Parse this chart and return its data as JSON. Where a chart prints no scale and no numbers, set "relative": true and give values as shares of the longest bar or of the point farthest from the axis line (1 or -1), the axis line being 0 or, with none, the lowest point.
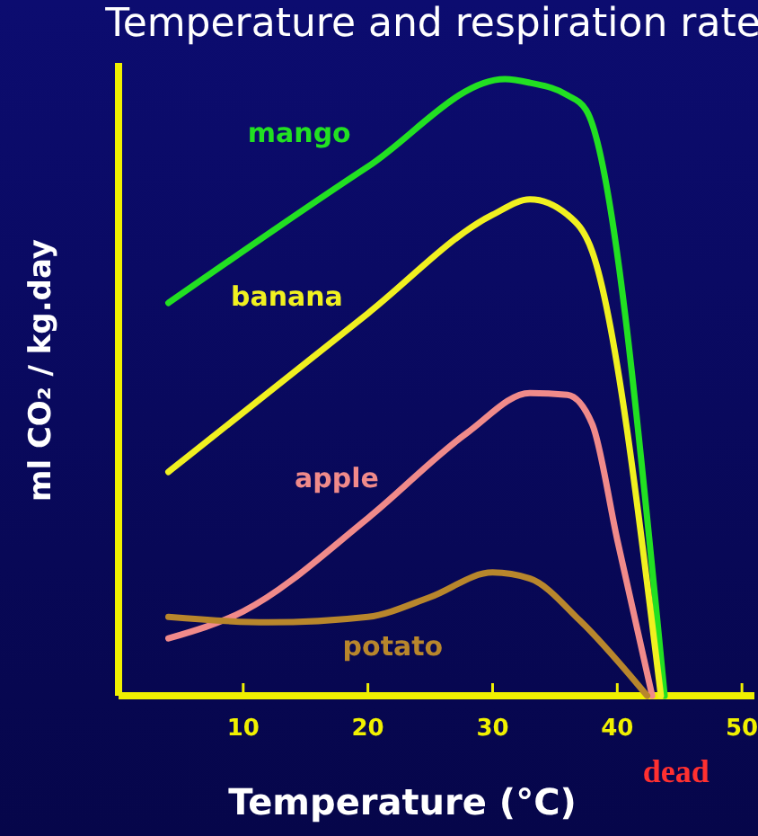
{
  "chart_data": {
    "type": "line",
    "title": "Temperature and respiration rate",
    "xlabel": "Temperature (°C)",
    "ylabel": "ml CO₂ / kg.day",
    "relative": true,
    "xlim": [
      0,
      51
    ],
    "xticks": [
      10,
      20,
      30,
      40,
      50
    ],
    "legend": false,
    "grid": false,
    "marker": "none",
    "annotations": [
      {
        "text": "dead",
        "x": 44,
        "y": 0
      }
    ],
    "series": [
      {
        "name": "mango",
        "color": "#22e022",
        "x": [
          4,
          20,
          31,
          33,
          36,
          37.5,
          43.8
        ],
        "values": [
          0.637,
          0.858,
          1,
          0.994,
          0.974,
          0.95,
          0
        ]
      },
      {
        "name": "banana",
        "color": "#f0f020",
        "x": [
          4,
          20,
          30,
          33,
          36,
          38,
          43.5
        ],
        "values": [
          0.363,
          0.62,
          0.78,
          0.805,
          0.78,
          0.72,
          0
        ]
      },
      {
        "name": "apple",
        "color": "#f08a8a",
        "x": [
          4,
          10,
          20,
          28,
          33,
          36,
          38,
          40,
          42.8
        ],
        "values": [
          0.093,
          0.137,
          0.288,
          0.427,
          0.491,
          0.488,
          0.44,
          0.253,
          0
        ]
      },
      {
        "name": "potato",
        "color": "#b8862c",
        "x": [
          4,
          12,
          20,
          25,
          30,
          33,
          37,
          42.4
        ],
        "values": [
          0.128,
          0.119,
          0.128,
          0.16,
          0.2,
          0.19,
          0.122,
          0
        ]
      }
    ]
  }
}
